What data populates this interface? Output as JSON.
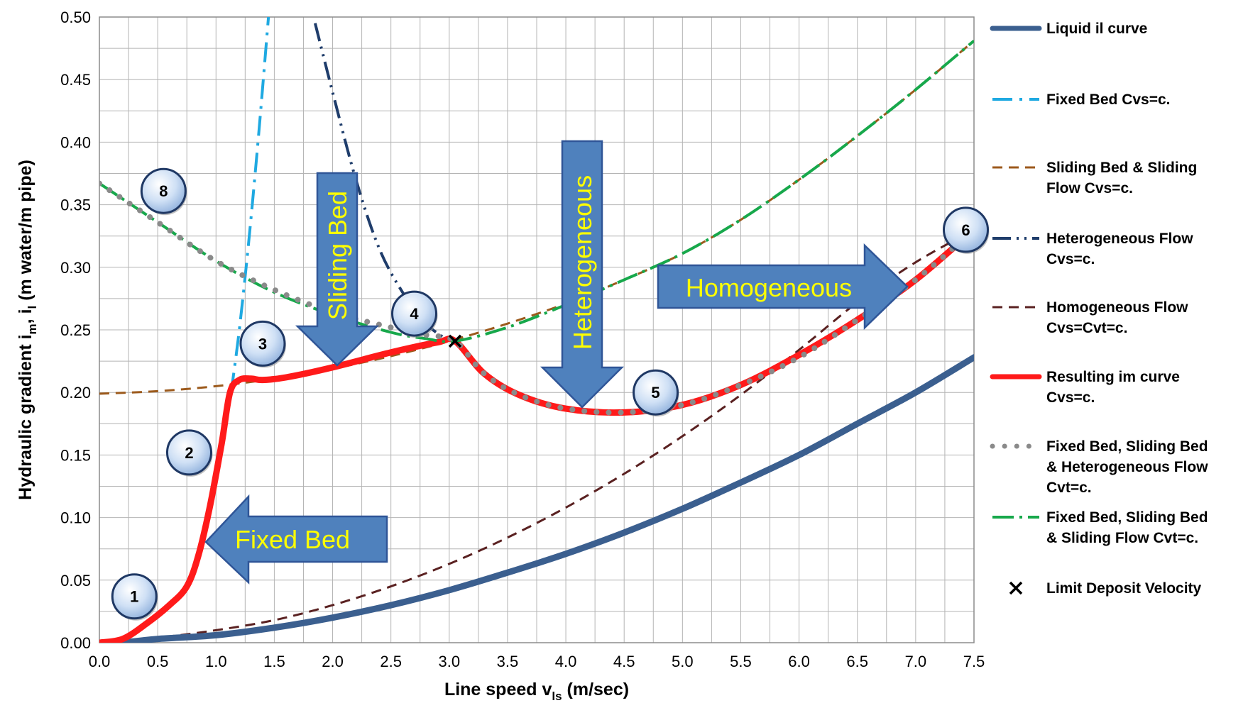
{
  "chart_data": {
    "type": "line",
    "xlabel": "Line speed v",
    "xlabel_sub": "ls",
    "xlabel_unit": " (m/sec)",
    "ylabel": "Hydraulic gradient i",
    "ylabel_sub1": "m",
    "ylabel_mid": ", i",
    "ylabel_sub2": "l",
    "ylabel_unit": " (m water/m pipe)",
    "xlim": [
      0,
      7.5
    ],
    "ylim": [
      0,
      0.5
    ],
    "x_ticks": [
      "0.0",
      "0.5",
      "1.0",
      "1.5",
      "2.0",
      "2.5",
      "3.0",
      "3.5",
      "4.0",
      "4.5",
      "5.0",
      "5.5",
      "6.0",
      "6.5",
      "7.0",
      "7.5"
    ],
    "y_ticks": [
      "0.00",
      "0.05",
      "0.10",
      "0.15",
      "0.20",
      "0.25",
      "0.30",
      "0.35",
      "0.40",
      "0.45",
      "0.50"
    ],
    "grid": true,
    "legend_position": "right",
    "series": [
      {
        "name": "Liquid il curve",
        "color": "#3b5f8f",
        "style": "solid-thick",
        "x": [
          0.2,
          0.5,
          1,
          1.5,
          2,
          2.5,
          3,
          3.5,
          4,
          4.5,
          5,
          5.5,
          6,
          6.5,
          7,
          7.5
        ],
        "y": [
          0.0,
          0.003,
          0.006,
          0.012,
          0.02,
          0.03,
          0.042,
          0.056,
          0.071,
          0.088,
          0.107,
          0.128,
          0.15,
          0.175,
          0.2,
          0.228
        ]
      },
      {
        "name": "Fixed Bed Cvs=c.",
        "color": "#1fa9e1",
        "style": "dash-dot",
        "x": [
          1.13,
          1.2,
          1.28,
          1.36,
          1.45
        ],
        "y": [
          0.2,
          0.25,
          0.32,
          0.4,
          0.5
        ]
      },
      {
        "name": "Sliding Bed & Sliding Flow Cvs=c.",
        "color": "#9c5a1c",
        "style": "dash",
        "x": [
          0,
          0.5,
          1,
          1.5,
          2,
          2.5,
          3,
          3.5,
          4,
          4.5,
          5,
          5.5,
          6,
          6.5,
          7,
          7.5
        ],
        "y": [
          0.199,
          0.201,
          0.205,
          0.211,
          0.219,
          0.229,
          0.241,
          0.255,
          0.271,
          0.29,
          0.311,
          0.338,
          0.37,
          0.405,
          0.442,
          0.481
        ]
      },
      {
        "name": "Heterogeneous Flow Cvs=c.",
        "color": "#1f3d6b",
        "style": "long-dash-dot-dot",
        "x": [
          1.85,
          2.0,
          2.2,
          2.4,
          2.6,
          2.8,
          3.0
        ],
        "y": [
          0.495,
          0.44,
          0.37,
          0.315,
          0.28,
          0.255,
          0.241
        ]
      },
      {
        "name": "Homogeneous Flow Cvs=Cvt=c.",
        "color": "#5a2121",
        "style": "dash",
        "x": [
          0,
          0.5,
          1,
          1.5,
          2,
          2.5,
          3,
          3.5,
          4,
          4.5,
          5,
          5.5,
          6,
          6.5,
          7,
          7.5
        ],
        "y": [
          0,
          0.004,
          0.01,
          0.018,
          0.03,
          0.045,
          0.063,
          0.084,
          0.108,
          0.135,
          0.165,
          0.198,
          0.234,
          0.272,
          0.304,
          0.33
        ]
      },
      {
        "name": "Resulting im curve Cvs=c.",
        "color": "#ff1a1a",
        "style": "solid-thick",
        "x": [
          0,
          0.2,
          0.4,
          0.6,
          0.75,
          0.85,
          0.95,
          1.05,
          1.12,
          1.2,
          1.3,
          1.4,
          1.6,
          2.0,
          2.5,
          2.9,
          3.05,
          3.3,
          3.6,
          4.0,
          4.5,
          5.0,
          5.5,
          6.0,
          6.5,
          7.0,
          7.5
        ],
        "y": [
          0,
          0.003,
          0.015,
          0.03,
          0.045,
          0.07,
          0.11,
          0.16,
          0.2,
          0.21,
          0.211,
          0.21,
          0.212,
          0.22,
          0.232,
          0.24,
          0.241,
          0.215,
          0.198,
          0.187,
          0.184,
          0.19,
          0.206,
          0.23,
          0.258,
          0.29,
          0.33
        ]
      },
      {
        "name": "Fixed Bed, Sliding Bed & Heterogeneous Flow Cvt=c.",
        "color": "#8a8a8a",
        "style": "dotted",
        "x": [
          0.0,
          0.5,
          1.0,
          1.5,
          2.0,
          2.5,
          2.8,
          3.05,
          3.3,
          3.6,
          4.0,
          4.5,
          5.0,
          5.5,
          6.0,
          6.5,
          7.0,
          7.5
        ],
        "y": [
          0.367,
          0.336,
          0.305,
          0.282,
          0.264,
          0.252,
          0.246,
          0.241,
          0.215,
          0.198,
          0.187,
          0.184,
          0.19,
          0.206,
          0.228,
          0.258,
          0.29,
          0.33
        ]
      },
      {
        "name": "Fixed Bed, Sliding Bed & Sliding Flow Cvt=c.",
        "color": "#17a84b",
        "style": "long-dash-dot",
        "x": [
          0.0,
          0.5,
          1.0,
          1.5,
          2.0,
          2.5,
          2.8,
          3.05,
          3.5,
          4.0,
          4.5,
          5.0,
          5.5,
          6.0,
          6.5,
          7.0,
          7.5
        ],
        "y": [
          0.367,
          0.336,
          0.305,
          0.28,
          0.262,
          0.248,
          0.243,
          0.241,
          0.252,
          0.27,
          0.29,
          0.311,
          0.338,
          0.37,
          0.405,
          0.442,
          0.481
        ]
      }
    ],
    "limit_deposit": {
      "name": "Limit Deposit Velocity",
      "x": 3.05,
      "y": 0.241
    },
    "badges": [
      {
        "label": "1",
        "x": 0.3,
        "y": 0.037
      },
      {
        "label": "2",
        "x": 0.77,
        "y": 0.152
      },
      {
        "label": "3",
        "x": 1.4,
        "y": 0.239
      },
      {
        "label": "4",
        "x": 2.7,
        "y": 0.263
      },
      {
        "label": "5",
        "x": 4.77,
        "y": 0.2
      },
      {
        "label": "6",
        "x": 7.43,
        "y": 0.33
      },
      {
        "label": "8",
        "x": 0.55,
        "y": 0.361
      }
    ],
    "annotations": [
      {
        "text": "Fixed Bed",
        "direction": "left"
      },
      {
        "text": "Sliding Bed",
        "direction": "down"
      },
      {
        "text": "Heterogeneous",
        "direction": "down"
      },
      {
        "text": "Homogeneous",
        "direction": "right"
      }
    ]
  }
}
